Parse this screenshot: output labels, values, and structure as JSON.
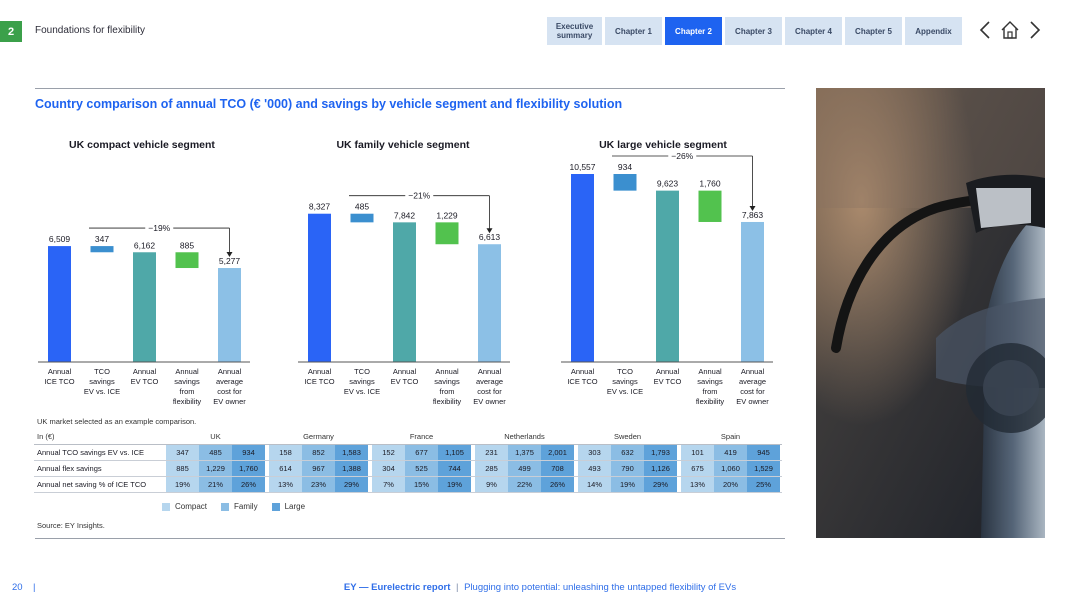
{
  "header": {
    "section_number": "2",
    "section_title": "Foundations for flexibility",
    "tabs": [
      {
        "label": "Executive summary",
        "active": false
      },
      {
        "label": "Chapter 1",
        "active": false
      },
      {
        "label": "Chapter 2",
        "active": true
      },
      {
        "label": "Chapter 3",
        "active": false
      },
      {
        "label": "Chapter 4",
        "active": false
      },
      {
        "label": "Chapter 5",
        "active": false
      },
      {
        "label": "Appendix",
        "active": false
      }
    ],
    "icons": [
      "chevron-left-icon",
      "home-icon",
      "chevron-right-icon"
    ]
  },
  "main_title": "Country comparison of annual TCO (€ '000) and savings by vehicle segment and flexibility solution",
  "colors": {
    "ice": "#2a64f6",
    "tco_savings": "#3b8fcf",
    "ev_tco": "#4fa8a8",
    "flex": "#52c24e",
    "ev_owner": "#8cc0e6"
  },
  "chart_data": [
    {
      "type": "bar",
      "subtype": "waterfall",
      "title": "UK compact vehicle segment",
      "categories": [
        "Annual ICE TCO",
        "TCO savings EV vs. ICE",
        "Annual EV TCO",
        "Annual savings from flexibility",
        "Annual average cost for EV owner"
      ],
      "values": [
        6509,
        347,
        6162,
        885,
        5277
      ],
      "value_labels": [
        "6,509",
        "347",
        "6,162",
        "885",
        "5,277"
      ],
      "annotation": "−19%",
      "ylim": [
        0,
        11000
      ]
    },
    {
      "type": "bar",
      "subtype": "waterfall",
      "title": "UK family vehicle segment",
      "categories": [
        "Annual ICE TCO",
        "TCO savings EV vs. ICE",
        "Annual EV TCO",
        "Annual savings from flexibility",
        "Annual average cost for EV owner"
      ],
      "values": [
        8327,
        485,
        7842,
        1229,
        6613
      ],
      "value_labels": [
        "8,327",
        "485",
        "7,842",
        "1,229",
        "6,613"
      ],
      "annotation": "−21%",
      "ylim": [
        0,
        11000
      ]
    },
    {
      "type": "bar",
      "subtype": "waterfall",
      "title": "UK large vehicle segment",
      "categories": [
        "Annual ICE TCO",
        "TCO savings EV vs. ICE",
        "Annual EV TCO",
        "Annual savings from flexibility",
        "Annual average cost for EV owner"
      ],
      "values": [
        10557,
        934,
        9623,
        1760,
        7863
      ],
      "value_labels": [
        "10,557",
        "934",
        "9,623",
        "1,760",
        "7,863"
      ],
      "annotation": "−26%",
      "ylim": [
        0,
        11000
      ]
    }
  ],
  "table": {
    "note": "UK market selected as an example comparison.",
    "unit_label": "In (€)",
    "countries": [
      "UK",
      "Germany",
      "France",
      "Netherlands",
      "Sweden",
      "Spain"
    ],
    "rows": [
      {
        "label": "Annual TCO savings EV vs. ICE",
        "values": [
          [
            "347",
            "485",
            "934"
          ],
          [
            "158",
            "852",
            "1,583"
          ],
          [
            "152",
            "677",
            "1,105"
          ],
          [
            "231",
            "1,375",
            "2,001"
          ],
          [
            "303",
            "632",
            "1,793"
          ],
          [
            "101",
            "419",
            "945"
          ]
        ]
      },
      {
        "label": "Annual flex savings",
        "values": [
          [
            "885",
            "1,229",
            "1,760"
          ],
          [
            "614",
            "967",
            "1,388"
          ],
          [
            "304",
            "525",
            "744"
          ],
          [
            "285",
            "499",
            "708"
          ],
          [
            "493",
            "790",
            "1,126"
          ],
          [
            "675",
            "1,060",
            "1,529"
          ]
        ]
      },
      {
        "label": "Annual net saving % of ICE TCO",
        "values": [
          [
            "19%",
            "21%",
            "26%"
          ],
          [
            "13%",
            "23%",
            "29%"
          ],
          [
            "7%",
            "15%",
            "19%"
          ],
          [
            "9%",
            "22%",
            "26%"
          ],
          [
            "14%",
            "19%",
            "29%"
          ],
          [
            "13%",
            "20%",
            "25%"
          ]
        ]
      }
    ],
    "legend": [
      {
        "label": "Compact",
        "color": "#b6d6ee"
      },
      {
        "label": "Family",
        "color": "#8bbde4"
      },
      {
        "label": "Large",
        "color": "#5ea2da"
      }
    ],
    "source": "Source: EY Insights."
  },
  "footer": {
    "page_number": "20",
    "separator": "|",
    "report_bold": "EY — Eurelectric report",
    "divider": "|",
    "report_subtitle": "Plugging into potential: unleashing the untapped flexibility of EVs"
  }
}
